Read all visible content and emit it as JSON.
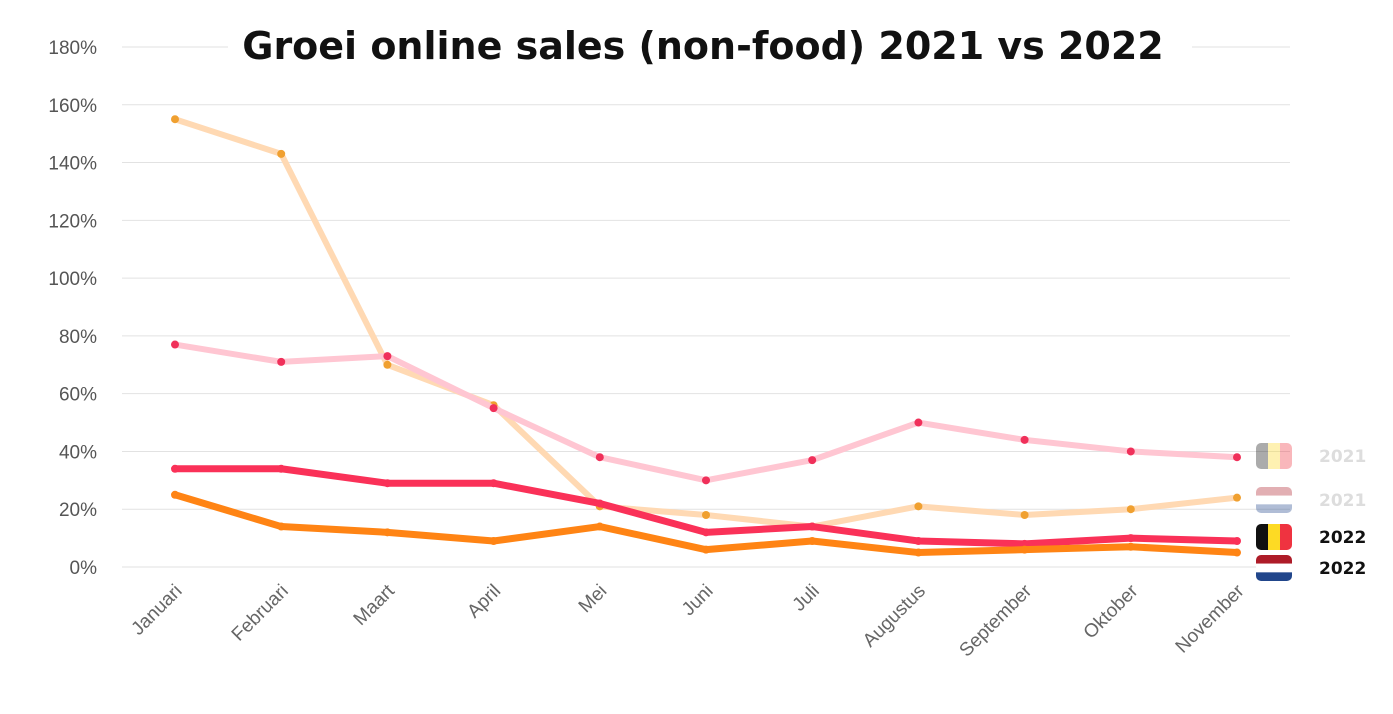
{
  "chart_data": {
    "type": "line",
    "title": "Groei online sales (non-food) 2021 vs 2022",
    "xlabel": "",
    "ylabel": "",
    "ylim": [
      0,
      180
    ],
    "yticks": [
      0,
      20,
      40,
      60,
      80,
      100,
      120,
      140,
      160,
      180
    ],
    "ytick_suffix": "%",
    "grid": true,
    "legend_position": "right",
    "categories": [
      "Januari",
      "Februari",
      "Maart",
      "April",
      "Mei",
      "Juni",
      "Juli",
      "Augustus",
      "September",
      "Oktober",
      "November"
    ],
    "series": [
      {
        "legend_label": "2021",
        "flag": "belgium-flag",
        "color": "#ffd9b3",
        "marker_color": "#f0a030",
        "label_color": "#dddddd",
        "faded": true,
        "values": [
          155,
          143,
          70,
          56,
          21,
          18,
          14,
          21,
          18,
          20,
          24
        ]
      },
      {
        "legend_label": "2021",
        "flag": "netherlands-flag",
        "color": "#ffc6d2",
        "marker_color": "#f0305a",
        "label_color": "#dddddd",
        "faded": true,
        "values": [
          77,
          71,
          73,
          55,
          38,
          30,
          37,
          50,
          44,
          40,
          38
        ]
      },
      {
        "legend_label": "2022",
        "flag": "belgium-flag",
        "color": "#fa3158",
        "marker_color": "#fa3158",
        "label_color": "#111111",
        "faded": false,
        "values": [
          34,
          34,
          29,
          29,
          22,
          12,
          14,
          9,
          8,
          10,
          9
        ]
      },
      {
        "legend_label": "2022",
        "flag": "netherlands-flag",
        "color": "#ff8414",
        "marker_color": "#ff8414",
        "label_color": "#111111",
        "faded": false,
        "values": [
          25,
          14,
          12,
          9,
          14,
          6,
          9,
          5,
          6,
          7,
          5
        ]
      }
    ]
  }
}
